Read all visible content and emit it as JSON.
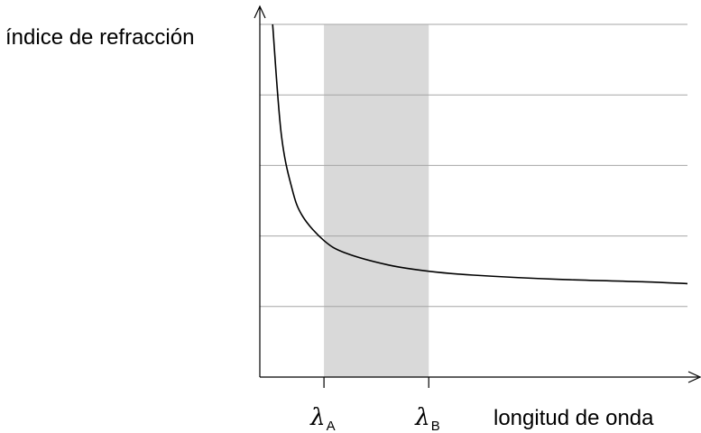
{
  "chart_data": {
    "type": "line",
    "ylabel": "índice de refracción",
    "xlabel": "longitud de onda",
    "xlim": [
      0,
      1
    ],
    "ylim": [
      0,
      1
    ],
    "grid": true,
    "highlight_band": {
      "from": "λA",
      "to": "λB",
      "x_range": [
        0.15,
        0.395
      ],
      "color": "#d9d9d9"
    },
    "x_markers": [
      {
        "symbol": "λ",
        "subscript": "A",
        "x": 0.15
      },
      {
        "symbol": "λ",
        "subscript": "B",
        "x": 0.395
      }
    ],
    "series": [
      {
        "color": "#000000",
        "x": [
          0.03,
          0.05,
          0.075,
          0.1,
          0.15,
          0.2,
          0.3,
          0.395,
          0.5,
          0.7,
          0.9,
          1.0
        ],
        "y": [
          1.0,
          0.69,
          0.535,
          0.456,
          0.387,
          0.352,
          0.318,
          0.3,
          0.289,
          0.277,
          0.27,
          0.265
        ]
      }
    ]
  }
}
